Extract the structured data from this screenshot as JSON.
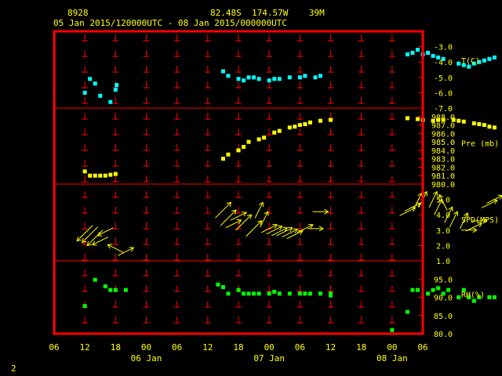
{
  "header": {
    "station_id": "8928",
    "location": "82.48S  174.57W    39M",
    "time_range": "05 Jan 2015/120000UTC - 08 Jan 2015/000000UTC"
  },
  "footer": {
    "page_number": "2"
  },
  "colors": {
    "frame": "#ff0000",
    "grid": "#ff0000",
    "text": "#ffff00",
    "temperature": "#00ffff",
    "pressure": "#ffff00",
    "wind": "#ffff00",
    "humidity": "#00ff00"
  },
  "chart_data": {
    "type": "scatter",
    "x_unit": "hours since 05 Jan 2015 12UTC",
    "x_ticks": [
      "06",
      "12",
      "18",
      "00",
      "06",
      "12",
      "18",
      "00",
      "06",
      "12",
      "18",
      "00",
      "06"
    ],
    "date_labels": [
      "06 Jan",
      "07 Jan",
      "08 Jan"
    ],
    "panels": [
      {
        "name": "temperature",
        "label": "T(C)",
        "ylim": [
          -7.0,
          -2.0
        ],
        "ticks": [
          -3.0,
          -4.0,
          -5.0,
          -6.0,
          -7.0
        ],
        "tick_labels": [
          "-3.0",
          "-4.0",
          "-5.0",
          "-6.0",
          "-7.0"
        ],
        "points": [
          [
            0,
            -6.0
          ],
          [
            1,
            -5.1
          ],
          [
            2,
            -5.4
          ],
          [
            3,
            -6.2
          ],
          [
            5,
            -6.6
          ],
          [
            6,
            -5.8
          ],
          [
            6.2,
            -5.5
          ],
          [
            27,
            -4.6
          ],
          [
            28,
            -4.9
          ],
          [
            30,
            -5.1
          ],
          [
            31,
            -5.2
          ],
          [
            32,
            -5.0
          ],
          [
            33,
            -5.0
          ],
          [
            34,
            -5.1
          ],
          [
            36,
            -5.2
          ],
          [
            37,
            -5.1
          ],
          [
            38,
            -5.1
          ],
          [
            40,
            -5.0
          ],
          [
            42,
            -5.0
          ],
          [
            43,
            -4.9
          ],
          [
            45,
            -5.0
          ],
          [
            46,
            -4.9
          ],
          [
            63,
            -3.5
          ],
          [
            64,
            -3.4
          ],
          [
            65,
            -3.2
          ],
          [
            66,
            -3.5
          ],
          [
            67,
            -3.4
          ],
          [
            68,
            -3.6
          ],
          [
            69,
            -3.7
          ],
          [
            70,
            -3.8
          ],
          [
            73,
            -4.1
          ],
          [
            74,
            -4.2
          ],
          [
            75,
            -4.3
          ],
          [
            76,
            -4.1
          ],
          [
            77,
            -4.0
          ],
          [
            78,
            -3.9
          ],
          [
            79,
            -3.8
          ],
          [
            80,
            -3.7
          ],
          [
            82,
            -3.6
          ]
        ]
      },
      {
        "name": "pressure",
        "label": "Pre (mb)",
        "ylim": [
          980.0,
          989.0
        ],
        "ticks": [
          988.0,
          987.0,
          986.0,
          985.0,
          984.0,
          983.0,
          982.0,
          981.0,
          980.0
        ],
        "tick_labels": [
          "988.0",
          "987.0",
          "986.0",
          "985.0",
          "984.0",
          "983.0",
          "982.0",
          "981.0",
          "980.0"
        ],
        "points": [
          [
            0,
            981.5
          ],
          [
            1,
            981.0
          ],
          [
            2,
            981.0
          ],
          [
            3,
            981.0
          ],
          [
            4,
            981.0
          ],
          [
            5,
            981.1
          ],
          [
            6,
            981.2
          ],
          [
            27,
            983.0
          ],
          [
            28,
            983.5
          ],
          [
            30,
            984.0
          ],
          [
            31,
            984.4
          ],
          [
            32,
            985.0
          ],
          [
            34,
            985.3
          ],
          [
            35,
            985.5
          ],
          [
            37,
            986.1
          ],
          [
            38,
            986.3
          ],
          [
            40,
            986.7
          ],
          [
            41,
            986.8
          ],
          [
            42,
            987.0
          ],
          [
            43,
            987.1
          ],
          [
            44,
            987.3
          ],
          [
            46,
            987.5
          ],
          [
            48,
            987.6
          ],
          [
            63,
            987.8
          ],
          [
            65,
            987.7
          ],
          [
            66,
            987.6
          ],
          [
            68,
            987.5
          ],
          [
            69,
            987.6
          ],
          [
            70,
            987.6
          ],
          [
            72,
            987.6
          ],
          [
            73,
            987.5
          ],
          [
            74,
            987.4
          ],
          [
            76,
            987.2
          ],
          [
            77,
            987.1
          ],
          [
            78,
            987.0
          ],
          [
            79,
            986.8
          ],
          [
            80,
            986.7
          ],
          [
            82,
            986.6
          ]
        ]
      },
      {
        "name": "wind",
        "label": "SPD(MPS)",
        "ylim": [
          1.0,
          6.0
        ],
        "ticks": [
          5.0,
          4.0,
          3.0,
          2.0,
          1.0
        ],
        "tick_labels": [
          "5.0",
          "4.0",
          "3.0",
          "2.0",
          "1.0"
        ],
        "barbs": [
          [
            0,
            2.8,
            -2,
            -2
          ],
          [
            1,
            2.7,
            -2,
            -2
          ],
          [
            2,
            2.5,
            -2,
            -2
          ],
          [
            3,
            2.3,
            -2,
            -1
          ],
          [
            4,
            2.9,
            -2,
            -1
          ],
          [
            6,
            1.8,
            -2,
            1
          ],
          [
            8,
            1.6,
            2,
            1
          ],
          [
            27,
            4.3,
            2,
            2
          ],
          [
            28,
            3.8,
            2,
            2
          ],
          [
            29,
            3.4,
            2,
            1
          ],
          [
            30,
            3.9,
            2,
            1
          ],
          [
            31,
            3.5,
            2,
            2
          ],
          [
            33,
            3.1,
            2,
            2
          ],
          [
            34,
            4.3,
            1,
            2
          ],
          [
            35,
            3.7,
            1,
            2
          ],
          [
            36,
            3.1,
            2,
            1
          ],
          [
            37,
            3.0,
            2,
            1
          ],
          [
            38,
            2.9,
            2,
            1
          ],
          [
            39,
            2.9,
            2,
            1
          ],
          [
            40,
            2.8,
            2,
            1
          ],
          [
            41,
            2.7,
            2,
            1
          ],
          [
            43,
            3.1,
            2,
            1
          ],
          [
            45,
            3.1,
            2,
            0
          ],
          [
            46,
            4.2,
            2,
            0
          ],
          [
            63,
            4.2,
            2,
            1
          ],
          [
            64,
            4.5,
            2,
            1
          ],
          [
            65,
            4.9,
            1,
            2
          ],
          [
            66,
            5.0,
            1,
            2
          ],
          [
            68,
            5.0,
            1,
            2
          ],
          [
            69,
            4.5,
            1,
            2
          ],
          [
            70,
            4.8,
            -1,
            2
          ],
          [
            71,
            4.0,
            1,
            2
          ],
          [
            72,
            3.7,
            1,
            2
          ],
          [
            74,
            3.6,
            1,
            2
          ],
          [
            75,
            3.0,
            2,
            0
          ],
          [
            76,
            3.2,
            2,
            1
          ],
          [
            77,
            3.6,
            2,
            0
          ],
          [
            79,
            4.7,
            2,
            1
          ],
          [
            80,
            5.0,
            2,
            1
          ]
        ]
      },
      {
        "name": "humidity",
        "label": "RH(%)",
        "ylim": [
          80.0,
          100.0
        ],
        "ticks": [
          95.0,
          90.0,
          85.0,
          80.0
        ],
        "tick_labels": [
          "95.0",
          "90.0",
          "85.0",
          "80.0"
        ],
        "points": [
          [
            0,
            87.6
          ],
          [
            2,
            94.8
          ],
          [
            4,
            93.0
          ],
          [
            5,
            92.0
          ],
          [
            6,
            92.0
          ],
          [
            8,
            92.0
          ],
          [
            26,
            93.5
          ],
          [
            27,
            92.8
          ],
          [
            28,
            91.0
          ],
          [
            30,
            92.0
          ],
          [
            31,
            91.0
          ],
          [
            32,
            91.0
          ],
          [
            33,
            91.0
          ],
          [
            34,
            91.0
          ],
          [
            36,
            91.0
          ],
          [
            37,
            91.5
          ],
          [
            38,
            91.0
          ],
          [
            40,
            91.0
          ],
          [
            42,
            91.0
          ],
          [
            43,
            91.0
          ],
          [
            44,
            91.0
          ],
          [
            46,
            91.0
          ],
          [
            48,
            90.5
          ],
          [
            48,
            91.0
          ],
          [
            60,
            81.0
          ],
          [
            63,
            86.0
          ],
          [
            64,
            92.0
          ],
          [
            65,
            92.0
          ],
          [
            67,
            91.0
          ],
          [
            68,
            92.0
          ],
          [
            69,
            92.5
          ],
          [
            70,
            91.0
          ],
          [
            71,
            92.0
          ],
          [
            73,
            90.0
          ],
          [
            74,
            92.0
          ],
          [
            75,
            90.0
          ],
          [
            76,
            89.0
          ],
          [
            77,
            90.0
          ],
          [
            79,
            90.0
          ],
          [
            80,
            90.0
          ]
        ]
      }
    ]
  }
}
